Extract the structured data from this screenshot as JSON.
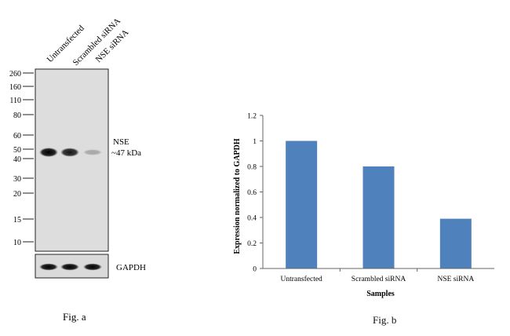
{
  "fig_a": {
    "caption": "Fig. a",
    "lanes": [
      "Untransfected",
      "Scrambled siRNA",
      "NSE siRNA"
    ],
    "marker_labels": [
      "260",
      "160",
      "110",
      "80",
      "60",
      "50",
      "40",
      "30",
      "20",
      "15",
      "10"
    ],
    "target_label": "NSE",
    "target_size": "~47 kDa",
    "control_label": "GAPDH",
    "nse_band_intensity": [
      1.0,
      0.9,
      0.25
    ],
    "gapdh_band_intensity": [
      1.0,
      1.0,
      1.0
    ]
  },
  "fig_b": {
    "caption": "Fig. b"
  },
  "chart_data": {
    "type": "bar",
    "categories": [
      "Untransfected",
      "Scrambled siRNA",
      "NSE siRNA"
    ],
    "values": [
      1.0,
      0.8,
      0.39
    ],
    "xlabel": "Samples",
    "ylabel": "Expression normalized to GAPDH",
    "ylim": [
      0,
      1.2
    ],
    "yticks": [
      "0",
      "0.2",
      "0.4",
      "0.6",
      "0.8",
      "1",
      "1.2"
    ],
    "grid": false,
    "bar_color": "#4f81bd"
  }
}
